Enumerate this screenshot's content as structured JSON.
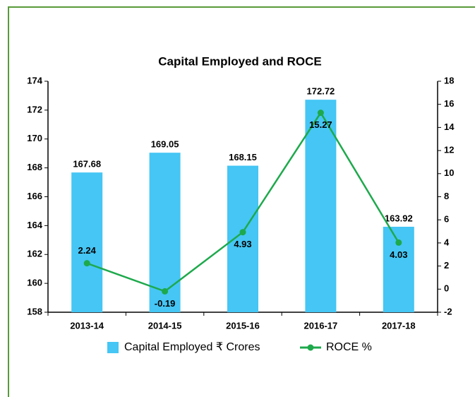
{
  "chart_data": {
    "type": "bar",
    "title": "Capital Employed and ROCE",
    "categories": [
      "2013-14",
      "2014-15",
      "2015-16",
      "2016-17",
      "2017-18"
    ],
    "series": [
      {
        "name": "Capital Employed ₹ Crores",
        "color": "#45c6f4",
        "values": [
          167.68,
          169.05,
          168.15,
          172.72,
          163.92
        ]
      },
      {
        "name": "ROCE %",
        "color": "#1ea94c",
        "type": "line",
        "axis": "y2",
        "values": [
          2.24,
          -0.19,
          4.93,
          15.27,
          4.03
        ]
      }
    ],
    "ylim": [
      158,
      174
    ],
    "yticks": [
      158,
      160,
      162,
      164,
      166,
      168,
      170,
      172,
      174
    ],
    "y2lim": [
      -2,
      18
    ],
    "y2ticks": [
      -2,
      0,
      2,
      4,
      6,
      8,
      10,
      12,
      14,
      16,
      18
    ],
    "grid": false
  }
}
